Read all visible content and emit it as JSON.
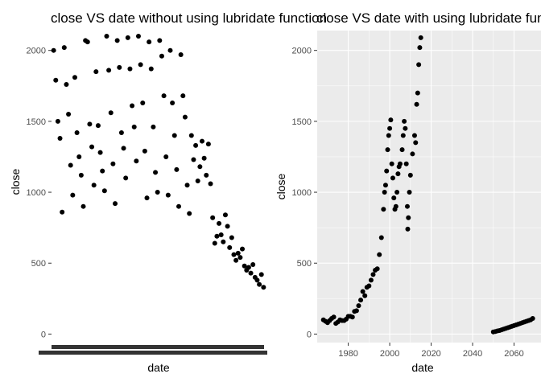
{
  "chart_data": [
    {
      "type": "scatter",
      "title": "close VS date without using lubridate function",
      "xlabel": "date",
      "ylabel": "close",
      "x_axis": "categorical dates (tick labels overplotted and unreadable)",
      "y_ticks": [
        0,
        500,
        1000,
        1500,
        2000
      ],
      "ylim": [
        -60,
        2140
      ],
      "grid": false,
      "background": "#ffffff",
      "point_color": "#000000",
      "points": [
        {
          "x": 1,
          "y": 2000
        },
        {
          "x": 2,
          "y": 1790
        },
        {
          "x": 3,
          "y": 1500
        },
        {
          "x": 4,
          "y": 1380
        },
        {
          "x": 5,
          "y": 860
        },
        {
          "x": 6,
          "y": 2020
        },
        {
          "x": 7,
          "y": 1760
        },
        {
          "x": 8,
          "y": 1550
        },
        {
          "x": 9,
          "y": 1190
        },
        {
          "x": 10,
          "y": 980
        },
        {
          "x": 11,
          "y": 1810
        },
        {
          "x": 12,
          "y": 1420
        },
        {
          "x": 13,
          "y": 1250
        },
        {
          "x": 14,
          "y": 1120
        },
        {
          "x": 15,
          "y": 900
        },
        {
          "x": 16,
          "y": 2070
        },
        {
          "x": 17,
          "y": 2060
        },
        {
          "x": 18,
          "y": 1480
        },
        {
          "x": 19,
          "y": 1320
        },
        {
          "x": 20,
          "y": 1050
        },
        {
          "x": 21,
          "y": 1850
        },
        {
          "x": 22,
          "y": 1470
        },
        {
          "x": 23,
          "y": 1280
        },
        {
          "x": 24,
          "y": 1150
        },
        {
          "x": 25,
          "y": 1010
        },
        {
          "x": 26,
          "y": 2100
        },
        {
          "x": 27,
          "y": 1860
        },
        {
          "x": 28,
          "y": 1560
        },
        {
          "x": 29,
          "y": 1200
        },
        {
          "x": 30,
          "y": 920
        },
        {
          "x": 31,
          "y": 2070
        },
        {
          "x": 32,
          "y": 1880
        },
        {
          "x": 33,
          "y": 1420
        },
        {
          "x": 34,
          "y": 1310
        },
        {
          "x": 35,
          "y": 1100
        },
        {
          "x": 36,
          "y": 2090
        },
        {
          "x": 37,
          "y": 1870
        },
        {
          "x": 38,
          "y": 1610
        },
        {
          "x": 39,
          "y": 1460
        },
        {
          "x": 40,
          "y": 1220
        },
        {
          "x": 41,
          "y": 2100
        },
        {
          "x": 42,
          "y": 1900
        },
        {
          "x": 43,
          "y": 1630
        },
        {
          "x": 44,
          "y": 1290
        },
        {
          "x": 45,
          "y": 960
        },
        {
          "x": 46,
          "y": 2060
        },
        {
          "x": 47,
          "y": 1870
        },
        {
          "x": 48,
          "y": 1460
        },
        {
          "x": 49,
          "y": 1140
        },
        {
          "x": 50,
          "y": 1000
        },
        {
          "x": 51,
          "y": 2070
        },
        {
          "x": 52,
          "y": 1960
        },
        {
          "x": 53,
          "y": 1680
        },
        {
          "x": 54,
          "y": 1250
        },
        {
          "x": 55,
          "y": 980
        },
        {
          "x": 56,
          "y": 2000
        },
        {
          "x": 57,
          "y": 1630
        },
        {
          "x": 58,
          "y": 1400
        },
        {
          "x": 59,
          "y": 1160
        },
        {
          "x": 60,
          "y": 900
        },
        {
          "x": 61,
          "y": 1970
        },
        {
          "x": 62,
          "y": 1680
        },
        {
          "x": 63,
          "y": 1530
        },
        {
          "x": 64,
          "y": 1050
        },
        {
          "x": 65,
          "y": 850
        },
        {
          "x": 66,
          "y": 1400
        },
        {
          "x": 67,
          "y": 1230
        },
        {
          "x": 68,
          "y": 1330
        },
        {
          "x": 69,
          "y": 1080
        },
        {
          "x": 70,
          "y": 1180
        },
        {
          "x": 71,
          "y": 1360
        },
        {
          "x": 72,
          "y": 1240
        },
        {
          "x": 73,
          "y": 1120
        },
        {
          "x": 74,
          "y": 1340
        },
        {
          "x": 75,
          "y": 1060
        },
        {
          "x": 76,
          "y": 820
        },
        {
          "x": 77,
          "y": 640
        },
        {
          "x": 78,
          "y": 690
        },
        {
          "x": 79,
          "y": 780
        },
        {
          "x": 80,
          "y": 700
        },
        {
          "x": 81,
          "y": 650
        },
        {
          "x": 82,
          "y": 840
        },
        {
          "x": 83,
          "y": 760
        },
        {
          "x": 84,
          "y": 610
        },
        {
          "x": 85,
          "y": 680
        },
        {
          "x": 86,
          "y": 560
        },
        {
          "x": 87,
          "y": 520
        },
        {
          "x": 88,
          "y": 570
        },
        {
          "x": 89,
          "y": 540
        },
        {
          "x": 90,
          "y": 600
        },
        {
          "x": 91,
          "y": 480
        },
        {
          "x": 92,
          "y": 450
        },
        {
          "x": 93,
          "y": 470
        },
        {
          "x": 94,
          "y": 430
        },
        {
          "x": 95,
          "y": 490
        },
        {
          "x": 96,
          "y": 400
        },
        {
          "x": 97,
          "y": 380
        },
        {
          "x": 98,
          "y": 350
        },
        {
          "x": 99,
          "y": 420
        },
        {
          "x": 100,
          "y": 330
        }
      ]
    },
    {
      "type": "scatter",
      "title": "close VS date with using lubridate function",
      "xlabel": "date",
      "ylabel": "close",
      "xlim": [
        1965,
        2073
      ],
      "ylim": [
        -60,
        2140
      ],
      "x_ticks": [
        1980,
        2000,
        2020,
        2040,
        2060
      ],
      "y_ticks": [
        0,
        500,
        1000,
        1500,
        2000
      ],
      "grid": true,
      "background": "#ebebeb",
      "point_color": "#000000",
      "points": [
        {
          "x": 1968.0,
          "y": 100
        },
        {
          "x": 1969.0,
          "y": 90
        },
        {
          "x": 1970.0,
          "y": 80
        },
        {
          "x": 1971.0,
          "y": 95
        },
        {
          "x": 1972.0,
          "y": 110
        },
        {
          "x": 1973.0,
          "y": 120
        },
        {
          "x": 1974.0,
          "y": 75
        },
        {
          "x": 1975.0,
          "y": 85
        },
        {
          "x": 1976.0,
          "y": 100
        },
        {
          "x": 1977.0,
          "y": 95
        },
        {
          "x": 1978.0,
          "y": 95
        },
        {
          "x": 1979.0,
          "y": 105
        },
        {
          "x": 1980.0,
          "y": 125
        },
        {
          "x": 1981.0,
          "y": 125
        },
        {
          "x": 1982.0,
          "y": 120
        },
        {
          "x": 1983.0,
          "y": 160
        },
        {
          "x": 1984.0,
          "y": 165
        },
        {
          "x": 1985.0,
          "y": 200
        },
        {
          "x": 1986.0,
          "y": 240
        },
        {
          "x": 1987.0,
          "y": 300
        },
        {
          "x": 1988.0,
          "y": 270
        },
        {
          "x": 1989.0,
          "y": 330
        },
        {
          "x": 1990.0,
          "y": 340
        },
        {
          "x": 1991.0,
          "y": 380
        },
        {
          "x": 1992.0,
          "y": 420
        },
        {
          "x": 1993.0,
          "y": 450
        },
        {
          "x": 1994.0,
          "y": 460
        },
        {
          "x": 1995.0,
          "y": 560
        },
        {
          "x": 1996.0,
          "y": 680
        },
        {
          "x": 1997.0,
          "y": 880
        },
        {
          "x": 1998.0,
          "y": 1050
        },
        {
          "x": 1999.0,
          "y": 1300
        },
        {
          "x": 2000.0,
          "y": 1450
        },
        {
          "x": 2001.0,
          "y": 1200
        },
        {
          "x": 2002.0,
          "y": 960
        },
        {
          "x": 2003.0,
          "y": 900
        },
        {
          "x": 2004.0,
          "y": 1130
        },
        {
          "x": 2005.0,
          "y": 1200
        },
        {
          "x": 2006.0,
          "y": 1300
        },
        {
          "x": 2007.0,
          "y": 1500
        },
        {
          "x": 2008.0,
          "y": 1200
        },
        {
          "x": 2009.0,
          "y": 820
        },
        {
          "x": 2010.0,
          "y": 1120
        },
        {
          "x": 2011.0,
          "y": 1270
        },
        {
          "x": 2012.0,
          "y": 1400
        },
        {
          "x": 2013.0,
          "y": 1620
        },
        {
          "x": 2014.0,
          "y": 1900
        },
        {
          "x": 2015.0,
          "y": 2090
        },
        {
          "x": 1997.5,
          "y": 1000
        },
        {
          "x": 1998.5,
          "y": 1150
        },
        {
          "x": 1999.5,
          "y": 1400
        },
        {
          "x": 2000.5,
          "y": 1510
        },
        {
          "x": 2001.5,
          "y": 1100
        },
        {
          "x": 2002.5,
          "y": 880
        },
        {
          "x": 2003.5,
          "y": 1000
        },
        {
          "x": 2004.5,
          "y": 1180
        },
        {
          "x": 2006.5,
          "y": 1400
        },
        {
          "x": 2007.5,
          "y": 1450
        },
        {
          "x": 2008.5,
          "y": 900
        },
        {
          "x": 2009.5,
          "y": 1000
        },
        {
          "x": 2008.7,
          "y": 740
        },
        {
          "x": 2012.5,
          "y": 1350
        },
        {
          "x": 2013.5,
          "y": 1700
        },
        {
          "x": 2014.5,
          "y": 2020
        },
        {
          "x": 2050.0,
          "y": 15
        },
        {
          "x": 2051.0,
          "y": 18
        },
        {
          "x": 2052.0,
          "y": 22
        },
        {
          "x": 2053.0,
          "y": 25
        },
        {
          "x": 2054.0,
          "y": 30
        },
        {
          "x": 2055.0,
          "y": 35
        },
        {
          "x": 2056.0,
          "y": 40
        },
        {
          "x": 2057.0,
          "y": 45
        },
        {
          "x": 2058.0,
          "y": 50
        },
        {
          "x": 2059.0,
          "y": 55
        },
        {
          "x": 2060.0,
          "y": 60
        },
        {
          "x": 2061.0,
          "y": 65
        },
        {
          "x": 2062.0,
          "y": 70
        },
        {
          "x": 2063.0,
          "y": 75
        },
        {
          "x": 2064.0,
          "y": 80
        },
        {
          "x": 2065.0,
          "y": 85
        },
        {
          "x": 2066.0,
          "y": 90
        },
        {
          "x": 2067.0,
          "y": 95
        },
        {
          "x": 2068.0,
          "y": 100
        },
        {
          "x": 2069.0,
          "y": 110
        }
      ]
    }
  ]
}
